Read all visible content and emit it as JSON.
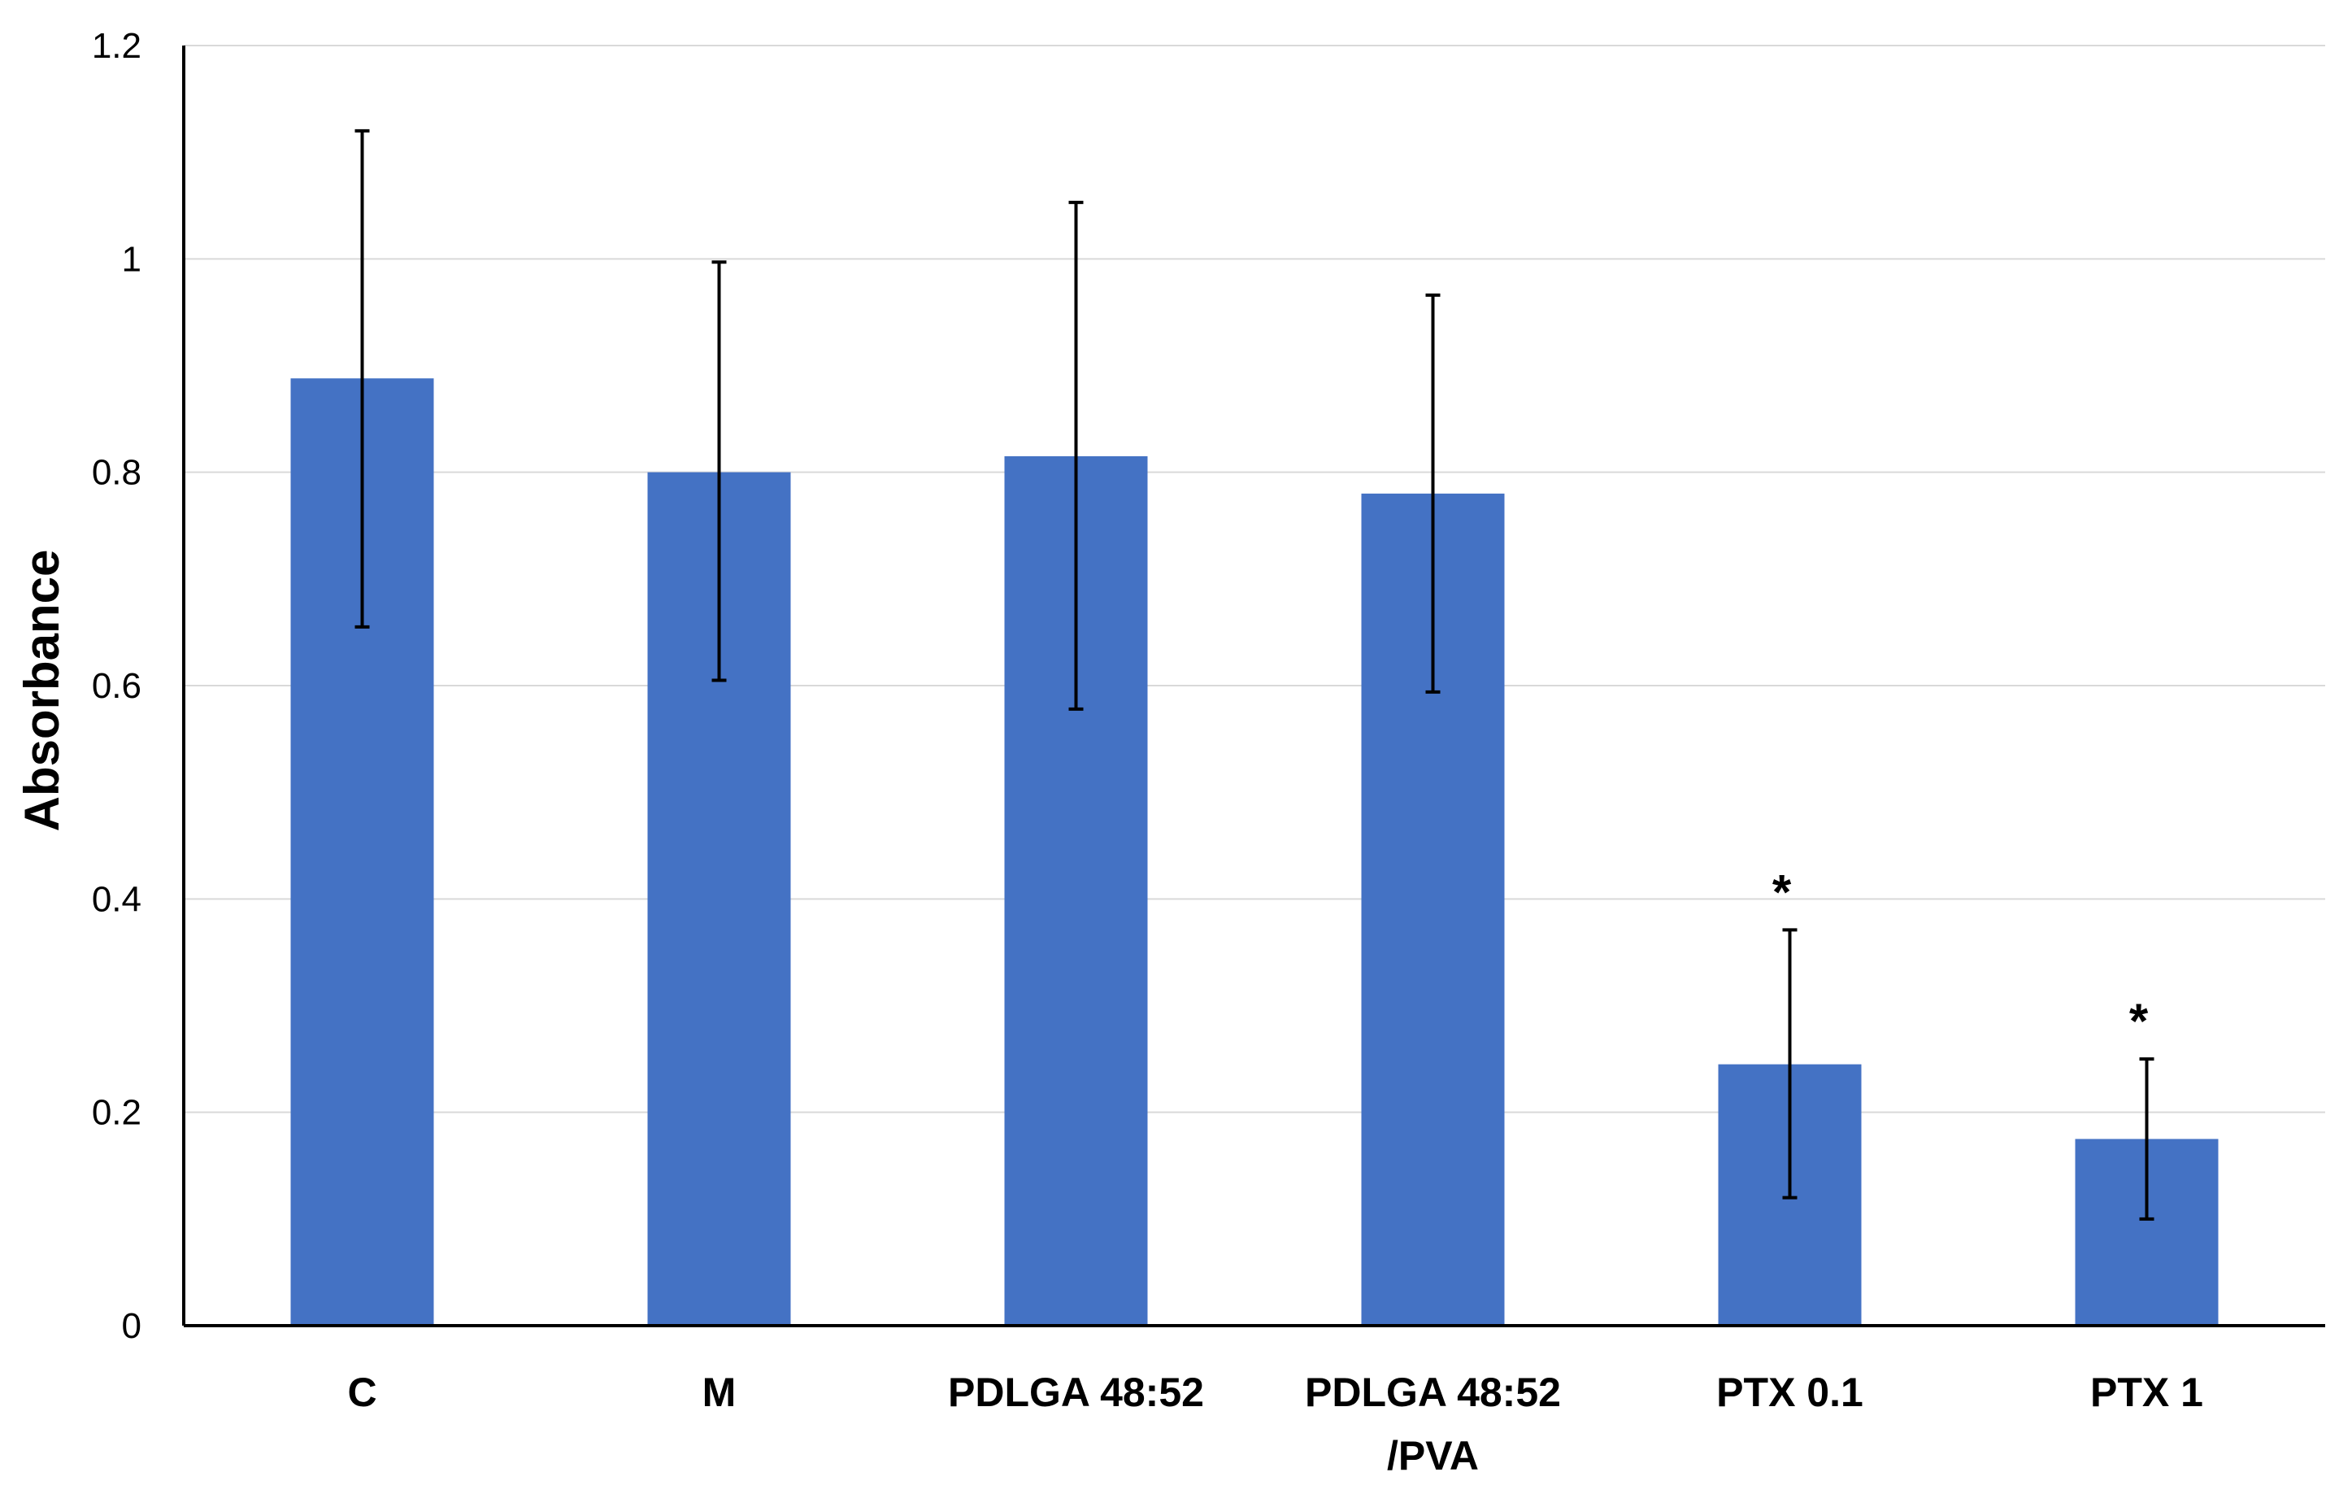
{
  "chart_data": {
    "type": "bar",
    "categories": [
      [
        "C"
      ],
      [
        "M"
      ],
      [
        "PDLGA 48:52"
      ],
      [
        "PDLGA 48:52",
        "/PVA"
      ],
      [
        "PTX 0.1"
      ],
      [
        "PTX 1"
      ]
    ],
    "values": [
      0.888,
      0.8,
      0.815,
      0.78,
      0.245,
      0.175
    ],
    "error_low": [
      0.655,
      0.605,
      0.578,
      0.594,
      0.12,
      0.1
    ],
    "error_high": [
      1.12,
      0.997,
      1.053,
      0.966,
      0.371,
      0.25
    ],
    "significance": [
      "",
      "",
      "",
      "",
      "*",
      "*"
    ],
    "title": "",
    "xlabel": "",
    "ylabel": "Absorbance",
    "ylim": [
      0,
      1.2
    ],
    "yticks": [
      "0",
      "0.2",
      "0.4",
      "0.6",
      "0.8",
      "1",
      "1.2"
    ],
    "grid": true,
    "bar_color": "#4472C4",
    "grid_color": "#D9D9D9"
  }
}
